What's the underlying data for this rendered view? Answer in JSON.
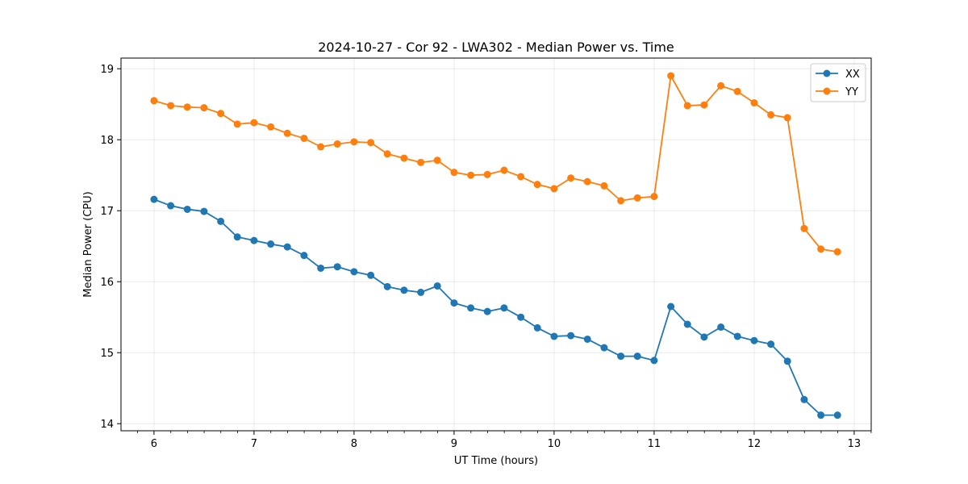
{
  "chart_data": {
    "type": "line",
    "title": "2024-10-27 - Cor 92 - LWA302 - Median Power vs. Time",
    "xlabel": "UT Time (hours)",
    "ylabel": "Median Power (CPU)",
    "xlim": [
      5.67,
      13.17
    ],
    "ylim": [
      13.9,
      19.15
    ],
    "xticks": [
      6,
      7,
      8,
      9,
      10,
      11,
      12,
      13
    ],
    "yticks": [
      14,
      15,
      16,
      17,
      18,
      19
    ],
    "x_minor_step": 0.1667,
    "grid": true,
    "legend_position": "top-right",
    "x": [
      6.0,
      6.167,
      6.333,
      6.5,
      6.667,
      6.833,
      7.0,
      7.167,
      7.333,
      7.5,
      7.667,
      7.833,
      8.0,
      8.167,
      8.333,
      8.5,
      8.667,
      8.833,
      9.0,
      9.167,
      9.333,
      9.5,
      9.667,
      9.833,
      10.0,
      10.167,
      10.333,
      10.5,
      10.667,
      10.833,
      11.0,
      11.167,
      11.333,
      11.5,
      11.667,
      11.833,
      12.0,
      12.167,
      12.333,
      12.5,
      12.667,
      12.833
    ],
    "series": [
      {
        "name": "XX",
        "color": "#1f77b4",
        "values": [
          17.16,
          17.07,
          17.02,
          16.99,
          16.85,
          16.63,
          16.58,
          16.53,
          16.49,
          16.37,
          16.19,
          16.21,
          16.14,
          16.09,
          15.93,
          15.88,
          15.85,
          15.94,
          15.7,
          15.63,
          15.58,
          15.63,
          15.5,
          15.35,
          15.23,
          15.24,
          15.19,
          15.07,
          14.95,
          14.95,
          14.89,
          15.65,
          15.4,
          15.22,
          15.36,
          15.23,
          15.17,
          15.12,
          14.88,
          14.34,
          14.12,
          14.12
        ]
      },
      {
        "name": "YY",
        "color": "#ff7f0e",
        "values": [
          18.55,
          18.48,
          18.46,
          18.45,
          18.37,
          18.22,
          18.24,
          18.18,
          18.09,
          18.02,
          17.9,
          17.94,
          17.97,
          17.96,
          17.8,
          17.74,
          17.68,
          17.71,
          17.54,
          17.5,
          17.51,
          17.57,
          17.48,
          17.37,
          17.31,
          17.46,
          17.41,
          17.35,
          17.14,
          17.18,
          17.2,
          18.9,
          18.48,
          18.49,
          18.76,
          18.68,
          18.52,
          18.35,
          18.31,
          16.75,
          16.46,
          16.42
        ]
      }
    ]
  }
}
